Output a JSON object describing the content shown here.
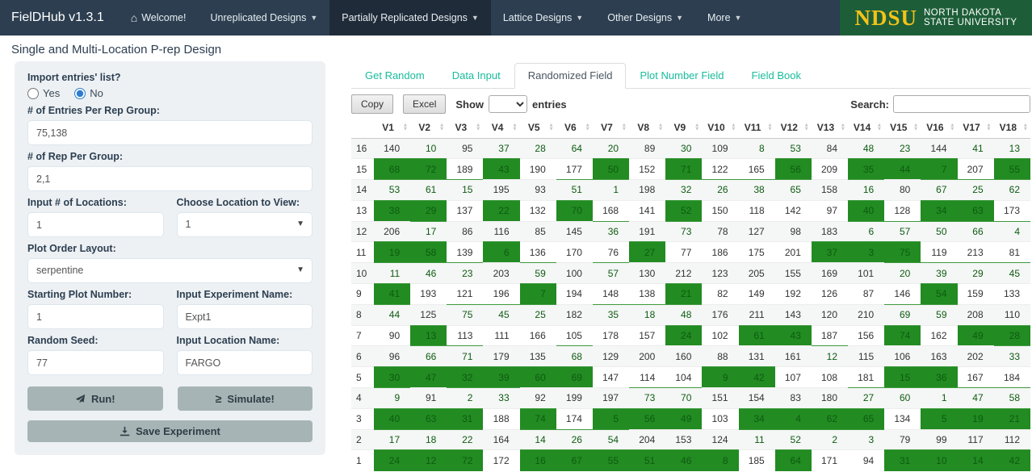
{
  "navbar": {
    "brand": "FielDHub v1.3.1",
    "items": [
      {
        "label": "Welcome!",
        "icon": "home-icon",
        "dropdown": false,
        "active": false
      },
      {
        "label": "Unreplicated Designs",
        "dropdown": true,
        "active": false
      },
      {
        "label": "Partially Replicated Designs",
        "dropdown": true,
        "active": true
      },
      {
        "label": "Lattice Designs",
        "dropdown": true,
        "active": false
      },
      {
        "label": "Other Designs",
        "dropdown": true,
        "active": false
      },
      {
        "label": "More",
        "dropdown": true,
        "active": false
      }
    ],
    "logo": {
      "abbr": "NDSU",
      "line1": "NORTH DAKOTA",
      "line2": "STATE UNIVERSITY"
    }
  },
  "page_title": "Single and Multi-Location P-rep Design",
  "sidebar": {
    "import_label": "Import entries' list?",
    "radio_yes": "Yes",
    "radio_no": "No",
    "radio_selected": "No",
    "entries_label": "# of Entries Per Rep Group:",
    "entries_value": "75,138",
    "reps_label": "# of Rep Per Group:",
    "reps_value": "2,1",
    "locations_label": "Input # of Locations:",
    "locations_value": "1",
    "location_view_label": "Choose Location to View:",
    "location_view_value": "1",
    "layout_label": "Plot Order Layout:",
    "layout_value": "serpentine",
    "starting_plot_label": "Starting Plot Number:",
    "starting_plot_value": "1",
    "experiment_label": "Input Experiment Name:",
    "experiment_value": "Expt1",
    "seed_label": "Random Seed:",
    "seed_value": "77",
    "location_name_label": "Input Location Name:",
    "location_name_value": "FARGO",
    "run_label": "Run!",
    "simulate_label": "Simulate!",
    "save_label": "Save Experiment"
  },
  "tabs": [
    {
      "label": "Get Random",
      "active": false
    },
    {
      "label": "Data Input",
      "active": false
    },
    {
      "label": "Randomized Field",
      "active": true
    },
    {
      "label": "Plot Number Field",
      "active": false
    },
    {
      "label": "Field Book",
      "active": false
    }
  ],
  "toolbar": {
    "copy_label": "Copy",
    "excel_label": "Excel",
    "show_label": "Show",
    "entries_label": "entries",
    "show_value": "",
    "search_label": "Search:",
    "search_value": ""
  },
  "table": {
    "replicated_threshold": 75,
    "colors": {
      "replicated_bg": "#228B22",
      "replicated_text": "#0d5c10",
      "accent_teal": "#18bc9c",
      "navbar_bg": "#2c3e50"
    },
    "columns": [
      "V1",
      "V2",
      "V3",
      "V4",
      "V5",
      "V6",
      "V7",
      "V8",
      "V9",
      "V10",
      "V11",
      "V12",
      "V13",
      "V14",
      "V15",
      "V16",
      "V17",
      "V18"
    ],
    "rows": [
      {
        "label": "16",
        "values": [
          140,
          10,
          95,
          37,
          28,
          64,
          20,
          89,
          30,
          109,
          8,
          53,
          84,
          48,
          23,
          144,
          41,
          13
        ]
      },
      {
        "label": "15",
        "values": [
          68,
          72,
          189,
          43,
          190,
          177,
          50,
          152,
          71,
          122,
          165,
          56,
          209,
          35,
          44,
          7,
          207,
          55
        ]
      },
      {
        "label": "14",
        "values": [
          53,
          61,
          15,
          195,
          93,
          51,
          1,
          198,
          32,
          26,
          38,
          65,
          158,
          16,
          80,
          67,
          25,
          62
        ]
      },
      {
        "label": "13",
        "values": [
          38,
          29,
          137,
          22,
          132,
          70,
          168,
          141,
          52,
          150,
          118,
          142,
          97,
          40,
          128,
          34,
          63,
          173
        ]
      },
      {
        "label": "12",
        "values": [
          206,
          17,
          86,
          116,
          85,
          145,
          36,
          191,
          73,
          78,
          127,
          98,
          183,
          6,
          57,
          50,
          66,
          4
        ]
      },
      {
        "label": "11",
        "values": [
          19,
          58,
          139,
          6,
          136,
          170,
          76,
          27,
          77,
          186,
          175,
          201,
          37,
          3,
          75,
          119,
          213,
          81
        ]
      },
      {
        "label": "10",
        "values": [
          11,
          46,
          23,
          203,
          59,
          100,
          57,
          130,
          212,
          123,
          205,
          155,
          169,
          101,
          20,
          39,
          29,
          45
        ]
      },
      {
        "label": "9",
        "values": [
          41,
          193,
          121,
          196,
          7,
          194,
          148,
          138,
          21,
          82,
          149,
          192,
          126,
          87,
          146,
          54,
          159,
          133
        ]
      },
      {
        "label": "8",
        "values": [
          44,
          125,
          75,
          45,
          25,
          182,
          35,
          18,
          48,
          176,
          211,
          143,
          120,
          210,
          69,
          59,
          208,
          110
        ]
      },
      {
        "label": "7",
        "values": [
          90,
          13,
          113,
          111,
          166,
          105,
          178,
          157,
          24,
          102,
          61,
          43,
          187,
          156,
          74,
          162,
          49,
          28
        ]
      },
      {
        "label": "6",
        "values": [
          96,
          66,
          71,
          179,
          135,
          68,
          129,
          200,
          160,
          88,
          131,
          161,
          12,
          115,
          106,
          163,
          202,
          33
        ]
      },
      {
        "label": "5",
        "values": [
          30,
          47,
          32,
          39,
          60,
          69,
          147,
          114,
          104,
          9,
          42,
          107,
          108,
          181,
          15,
          36,
          167,
          184
        ]
      },
      {
        "label": "4",
        "values": [
          9,
          91,
          2,
          33,
          92,
          199,
          197,
          73,
          70,
          151,
          154,
          83,
          180,
          27,
          60,
          1,
          47,
          58
        ]
      },
      {
        "label": "3",
        "values": [
          40,
          63,
          31,
          188,
          74,
          174,
          5,
          56,
          49,
          103,
          34,
          4,
          62,
          65,
          134,
          5,
          19,
          21
        ]
      },
      {
        "label": "2",
        "values": [
          17,
          18,
          22,
          164,
          14,
          26,
          54,
          204,
          153,
          124,
          11,
          52,
          2,
          3,
          79,
          99,
          117,
          112
        ]
      },
      {
        "label": "1",
        "values": [
          24,
          12,
          72,
          172,
          16,
          67,
          55,
          51,
          46,
          8,
          185,
          64,
          171,
          94,
          31,
          10,
          14,
          42
        ]
      }
    ]
  }
}
